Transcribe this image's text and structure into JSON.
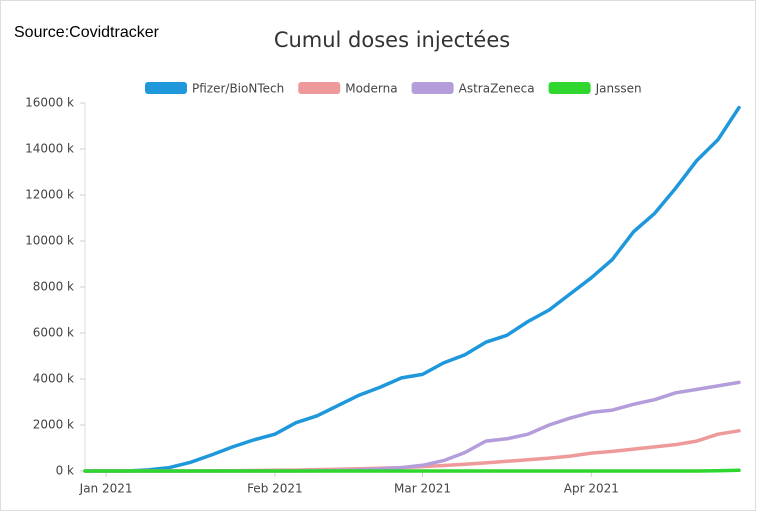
{
  "source": "Source:Covidtracker",
  "chart_data": {
    "type": "line",
    "title": "Cumul doses injectées",
    "categories": [
      null,
      "Jan 2021",
      null,
      null,
      null,
      null,
      null,
      null,
      null,
      "Feb 2021",
      null,
      null,
      null,
      null,
      null,
      null,
      "Mar 2021",
      null,
      null,
      null,
      null,
      null,
      null,
      null,
      "Apr 2021",
      null,
      null,
      null,
      null,
      null,
      null,
      null
    ],
    "series": [
      {
        "name": "Pfizer/BioNTech",
        "color": "#1f97db",
        "values": [
          0,
          0,
          0,
          50,
          150,
          380,
          700,
          1050,
          1350,
          1600,
          2100,
          2400,
          2850,
          3300,
          3650,
          4050,
          4200,
          4700,
          5050,
          5600,
          5900,
          6500,
          7000,
          7700,
          8400,
          9200,
          10400,
          11200,
          12300,
          13500,
          14400,
          15800
        ]
      },
      {
        "name": "Moderna",
        "color": "#ef9a9a",
        "values": [
          0,
          0,
          0,
          0,
          0,
          0,
          5,
          10,
          20,
          30,
          40,
          60,
          80,
          100,
          120,
          150,
          190,
          240,
          290,
          350,
          420,
          490,
          560,
          650,
          780,
          850,
          950,
          1050,
          1150,
          1300,
          1600,
          1750
        ]
      },
      {
        "name": "AstraZeneca",
        "color": "#b39ddb",
        "values": [
          0,
          0,
          0,
          0,
          0,
          0,
          0,
          0,
          0,
          0,
          0,
          5,
          20,
          50,
          90,
          150,
          250,
          450,
          800,
          1300,
          1400,
          1600,
          2000,
          2300,
          2550,
          2650,
          2900,
          3100,
          3400,
          3550,
          3700,
          3850
        ]
      },
      {
        "name": "Janssen",
        "color": "#2ed62e",
        "values": [
          0,
          0,
          0,
          0,
          0,
          0,
          0,
          0,
          0,
          0,
          0,
          0,
          0,
          0,
          0,
          0,
          0,
          0,
          0,
          0,
          0,
          0,
          0,
          0,
          0,
          0,
          0,
          0,
          0,
          0,
          10,
          30
        ]
      }
    ],
    "ylim": [
      0,
      16000
    ],
    "yticks": [
      {
        "value": 0,
        "label": "0 k"
      },
      {
        "value": 2000,
        "label": "2000 k"
      },
      {
        "value": 4000,
        "label": "4000 k"
      },
      {
        "value": 6000,
        "label": "6000 k"
      },
      {
        "value": 8000,
        "label": "8000 k"
      },
      {
        "value": 10000,
        "label": "10000 k"
      },
      {
        "value": 12000,
        "label": "12000 k"
      },
      {
        "value": 14000,
        "label": "14000 k"
      },
      {
        "value": 16000,
        "label": "16000 k"
      }
    ],
    "legend": "top"
  }
}
